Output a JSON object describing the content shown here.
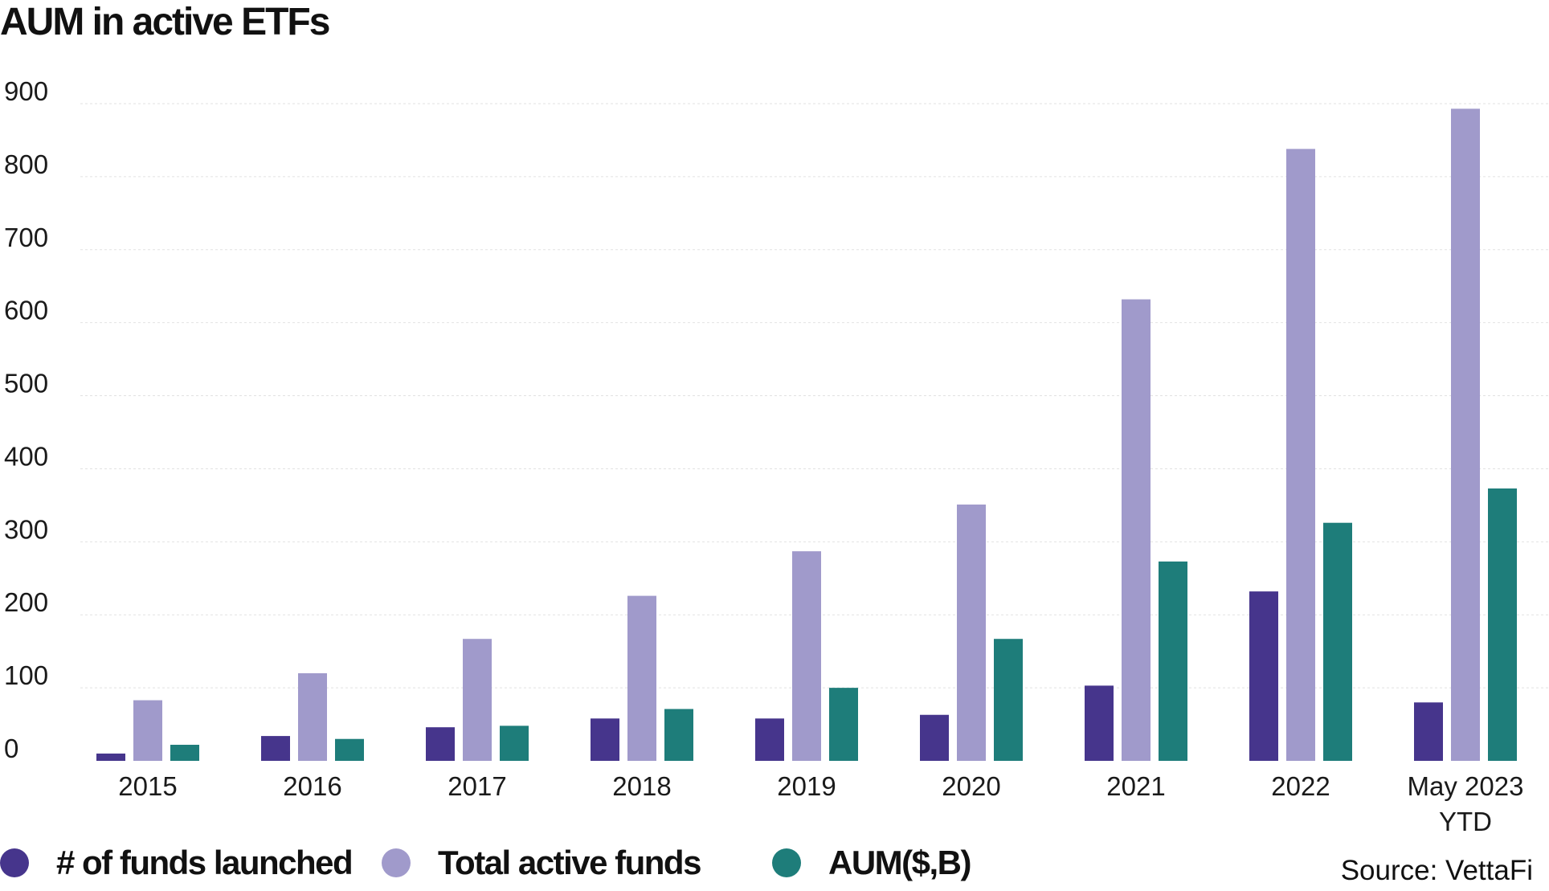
{
  "title": "AUM in active ETFs",
  "source": "Source: VettaFi",
  "legend": [
    {
      "label": "# of funds launched",
      "color": "#46358c"
    },
    {
      "label": "Total active funds",
      "color": "#a09acb"
    },
    {
      "label": "AUM($,B)",
      "color": "#1e7d7a"
    }
  ],
  "chart_data": {
    "type": "bar",
    "title": "AUM in active ETFs",
    "xlabel": "",
    "ylabel": "",
    "ylim": [
      0,
      900
    ],
    "yticks": [
      0,
      100,
      200,
      300,
      400,
      500,
      600,
      700,
      800,
      900
    ],
    "grid": true,
    "legend_position": "bottom",
    "categories": [
      [
        "2015"
      ],
      [
        "2016"
      ],
      [
        "2017"
      ],
      [
        "2018"
      ],
      [
        "2019"
      ],
      [
        "2020"
      ],
      [
        "2021"
      ],
      [
        "2022"
      ],
      [
        "May 2023",
        "YTD"
      ]
    ],
    "series": [
      {
        "name": "# of funds launched",
        "color": "#46358c",
        "values": [
          10,
          34,
          46,
          58,
          58,
          63,
          103,
          232,
          80
        ]
      },
      {
        "name": "Total active funds",
        "color": "#a09acb",
        "values": [
          83,
          120,
          167,
          226,
          287,
          351,
          632,
          838,
          893
        ]
      },
      {
        "name": "AUM($,B)",
        "color": "#1e7d7a",
        "values": [
          22,
          30,
          48,
          71,
          100,
          167,
          273,
          326,
          373
        ]
      }
    ]
  }
}
